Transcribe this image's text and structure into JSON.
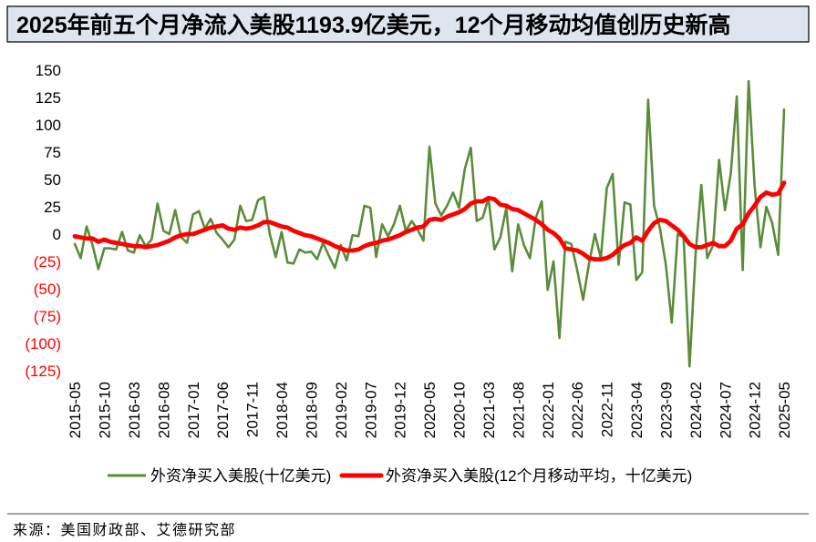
{
  "colors": {
    "title_banner": "#dfe5ef",
    "title_border": "#2b2b2b",
    "negative_tick": "#ff0000",
    "divider": "#444444"
  },
  "source": "来源：美国财政部、艾德研究部",
  "chart_data": {
    "type": "line",
    "title": "2025年前五个月净流入美股1193.9亿美元，12个月移动均值创历史新高",
    "xlabel": "",
    "ylabel": "",
    "ylim": [
      -125,
      150
    ],
    "grid": false,
    "legend": "bottom",
    "y_ticks": [
      150,
      125,
      100,
      75,
      50,
      25,
      0,
      -25,
      -50,
      -75,
      -100,
      -125
    ],
    "y_tick_labels": [
      "150",
      "125",
      "100",
      "75",
      "50",
      "25",
      "0",
      "(25)",
      "(50)",
      "(75)",
      "(100)",
      "(125)"
    ],
    "x_tick_labels": [
      "2015-05",
      "2015-10",
      "2016-03",
      "2016-08",
      "2017-01",
      "2017-06",
      "2017-11",
      "2018-04",
      "2018-09",
      "2019-02",
      "2019-07",
      "2019-12",
      "2020-05",
      "2020-10",
      "2021-03",
      "2021-08",
      "2022-01",
      "2022-06",
      "2022-11",
      "2023-04",
      "2023-09",
      "2024-02",
      "2024-07",
      "2024-12",
      "2025-05"
    ],
    "x": [
      "2015-05",
      "2015-06",
      "2015-07",
      "2015-08",
      "2015-09",
      "2015-10",
      "2015-11",
      "2015-12",
      "2016-01",
      "2016-02",
      "2016-03",
      "2016-04",
      "2016-05",
      "2016-06",
      "2016-07",
      "2016-08",
      "2016-09",
      "2016-10",
      "2016-11",
      "2016-12",
      "2017-01",
      "2017-02",
      "2017-03",
      "2017-04",
      "2017-05",
      "2017-06",
      "2017-07",
      "2017-08",
      "2017-09",
      "2017-10",
      "2017-11",
      "2017-12",
      "2018-01",
      "2018-02",
      "2018-03",
      "2018-04",
      "2018-05",
      "2018-06",
      "2018-07",
      "2018-08",
      "2018-09",
      "2018-10",
      "2018-11",
      "2018-12",
      "2019-01",
      "2019-02",
      "2019-03",
      "2019-04",
      "2019-05",
      "2019-06",
      "2019-07",
      "2019-08",
      "2019-09",
      "2019-10",
      "2019-11",
      "2019-12",
      "2020-01",
      "2020-02",
      "2020-03",
      "2020-04",
      "2020-05",
      "2020-06",
      "2020-07",
      "2020-08",
      "2020-09",
      "2020-10",
      "2020-11",
      "2020-12",
      "2021-01",
      "2021-02",
      "2021-03",
      "2021-04",
      "2021-05",
      "2021-06",
      "2021-07",
      "2021-08",
      "2021-09",
      "2021-10",
      "2021-11",
      "2021-12",
      "2022-01",
      "2022-02",
      "2022-03",
      "2022-04",
      "2022-05",
      "2022-06",
      "2022-07",
      "2022-08",
      "2022-09",
      "2022-10",
      "2022-11",
      "2022-12",
      "2023-01",
      "2023-02",
      "2023-03",
      "2023-04",
      "2023-05",
      "2023-06",
      "2023-07",
      "2023-08",
      "2023-09",
      "2023-10",
      "2023-11",
      "2023-12",
      "2024-01",
      "2024-02",
      "2024-03",
      "2024-04",
      "2024-05",
      "2024-06",
      "2024-07",
      "2024-08",
      "2024-09",
      "2024-10",
      "2024-11",
      "2024-12",
      "2025-01",
      "2025-02",
      "2025-03",
      "2025-04",
      "2025-05"
    ],
    "series": [
      {
        "name": "外资净买入美股(十亿美元)",
        "color": "#5b8c3a",
        "values": [
          -9,
          -22,
          7,
          -10,
          -32,
          -13,
          -13,
          -14,
          2,
          -15,
          -17,
          -1,
          -11,
          -5,
          28,
          3,
          0,
          22,
          -3,
          -8,
          18,
          21,
          5,
          14,
          1,
          -5,
          -12,
          -5,
          26,
          12,
          13,
          31,
          34,
          0,
          -21,
          2,
          -26,
          -27,
          -14,
          -17,
          -16,
          -23,
          -8,
          -20,
          -31,
          -10,
          -24,
          -1,
          -2,
          26,
          24,
          -21,
          9,
          -2,
          9,
          26,
          3,
          12,
          4,
          -6,
          80,
          28,
          17,
          26,
          38,
          24,
          60,
          79,
          12,
          15,
          33,
          -14,
          -3,
          24,
          -34,
          9,
          -10,
          -22,
          15,
          30,
          -51,
          -25,
          -95,
          -7,
          -9,
          -33,
          -60,
          -27,
          0,
          -22,
          42,
          55,
          -28,
          29,
          27,
          -42,
          -35,
          123,
          26,
          5,
          -28,
          -81,
          0,
          -3,
          -121,
          -20,
          45,
          -22,
          -10,
          68,
          22,
          56,
          126,
          -33,
          140,
          45,
          -12,
          25,
          10,
          -19,
          114
        ]
      },
      {
        "name": "外资净买入美股(12个月移动平均，十亿美元)",
        "color": "#ff0000",
        "values": [
          -2,
          -3,
          -4,
          -4,
          -7,
          -5,
          -7,
          -8,
          -9,
          -10,
          -11,
          -11,
          -12,
          -11,
          -10,
          -8,
          -6,
          -3,
          -1,
          0,
          0,
          2,
          4,
          6,
          7,
          8,
          5,
          4,
          6,
          5,
          6,
          8,
          11,
          11,
          9,
          7,
          6,
          3,
          1,
          -1,
          -2,
          -4,
          -6,
          -8,
          -11,
          -13,
          -15,
          -15,
          -14,
          -11,
          -9,
          -8,
          -6,
          -5,
          -3,
          -1,
          2,
          4,
          6,
          7,
          13,
          14,
          13,
          16,
          18,
          20,
          23,
          28,
          30,
          30,
          33,
          32,
          27,
          26,
          23,
          22,
          19,
          16,
          13,
          9,
          4,
          1,
          -4,
          -13,
          -14,
          -15,
          -18,
          -22,
          -23,
          -23,
          -22,
          -19,
          -14,
          -10,
          -8,
          -3,
          -6,
          3,
          10,
          13,
          12,
          8,
          4,
          -2,
          -9,
          -12,
          -12,
          -10,
          -8,
          -11,
          -11,
          -6,
          5,
          9,
          19,
          26,
          34,
          38,
          36,
          37,
          47
        ]
      }
    ]
  }
}
